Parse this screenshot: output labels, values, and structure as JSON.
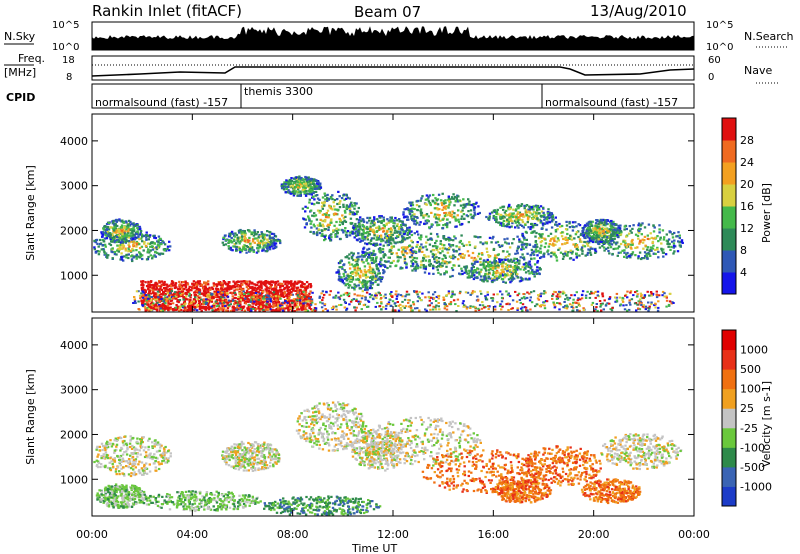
{
  "header": {
    "station": "Rankin Inlet (fitACF)",
    "beam": "Beam 07",
    "date": "13/Aug/2010"
  },
  "top_strips": {
    "nsky_label": "N.Sky",
    "nsky_ticks": [
      "10^5",
      "10^0"
    ],
    "nsearch_label": "N.Search",
    "nsearch_ticks": [
      "10^5",
      "10^0"
    ],
    "freq_label": "Freq.",
    "freq_unit": "[MHz]",
    "freq_ticks": [
      "18",
      "8"
    ],
    "nave_label": "Nave",
    "nave_ticks": [
      "60",
      "0"
    ],
    "cpid_label": "CPID",
    "cpid_segments": [
      "normalsound (fast) -157",
      "themis 3300",
      "normalsound (fast) -157"
    ]
  },
  "chart_data": [
    {
      "type": "heatmap",
      "panel": "power",
      "xlabel": "",
      "ylabel": "Slant Range [km]",
      "ylim": [
        180,
        4600
      ],
      "yticks": [
        "1000",
        "2000",
        "3000",
        "4000"
      ],
      "colorbar_label": "Power [dB]",
      "colorbar_ticks": [
        "28",
        "24",
        "20",
        "16",
        "12",
        "8",
        "4"
      ],
      "colors": [
        "#1515ea",
        "#2f58b6",
        "#2e8a58",
        "#44b94a",
        "#d8d040",
        "#f3a020",
        "#ef6a20",
        "#e01010"
      ]
    },
    {
      "type": "heatmap",
      "panel": "velocity",
      "xlabel": "Time UT",
      "ylabel": "Slant Range [km]",
      "ylim": [
        180,
        4600
      ],
      "yticks": [
        "1000",
        "2000",
        "3000",
        "4000"
      ],
      "xticks": [
        "00:00",
        "04:00",
        "08:00",
        "12:00",
        "16:00",
        "20:00",
        "00:00"
      ],
      "colorbar_label": "Velocity [m s-1]",
      "colorbar_ticks": [
        "1000",
        "500",
        "100",
        "25",
        "-25",
        "-100",
        "-500",
        "-1000"
      ],
      "colors": [
        "#1c3cc8",
        "#3a64b4",
        "#2e8a4a",
        "#6ac83c",
        "#c4c4c4",
        "#f0a020",
        "#f07010",
        "#e83018",
        "#e00000"
      ]
    }
  ]
}
